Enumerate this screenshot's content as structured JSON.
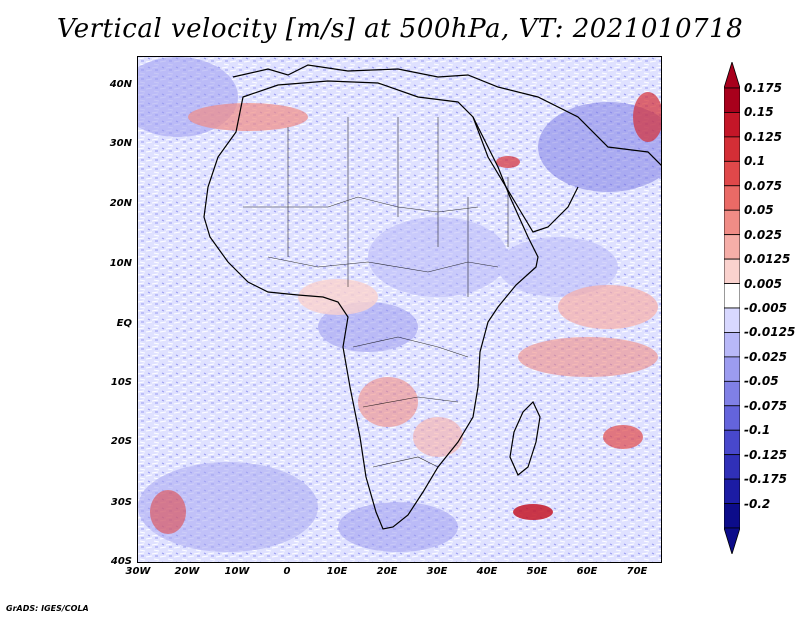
{
  "title": "Vertical velocity [m/s] at 500hPa, VT: 2021010718",
  "latitude_labels": [
    "40N",
    "30N",
    "20N",
    "10N",
    "EQ",
    "10S",
    "20S",
    "30S",
    "40S"
  ],
  "longitude_labels": [
    "30W",
    "20W",
    "10W",
    "0",
    "10E",
    "20E",
    "30E",
    "40E",
    "50E",
    "60E",
    "70E"
  ],
  "colorbar": {
    "labels": [
      "0.175",
      "0.15",
      "0.125",
      "0.1",
      "0.075",
      "0.05",
      "0.025",
      "0.0125",
      "0.005",
      "-0.005",
      "-0.0125",
      "-0.025",
      "-0.05",
      "-0.075",
      "-0.1",
      "-0.125",
      "-0.175",
      "-0.2"
    ],
    "colors": [
      "#a8001c",
      "#c41628",
      "#d42e36",
      "#e0484a",
      "#ea6a66",
      "#f08c86",
      "#f6aea8",
      "#fad2ce",
      "#ffffff",
      "#d8d8ff",
      "#b8b8f8",
      "#9c9cf0",
      "#8080e6",
      "#6464dc",
      "#4848cc",
      "#3030b8",
      "#1c1ca4",
      "#0c0c8a"
    ]
  },
  "credit": "GrADS: IGES/COLA"
}
